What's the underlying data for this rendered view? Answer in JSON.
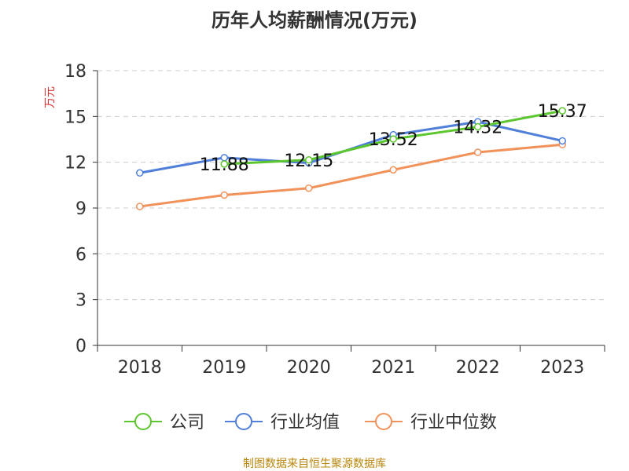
{
  "title": "历年人均薪酬情况(万元)",
  "footer": "制图数据来自恒生聚源数据库",
  "colors": {
    "company": "#5bc62d",
    "industry_avg": "#4f7fd8",
    "industry_median": "#f0925a",
    "unit_label": "#e03030",
    "axis": "#333333",
    "grid": "#cccccc"
  },
  "chart_data": {
    "type": "line",
    "title": "历年人均薪酬情况(万元)",
    "ylabel": "万元",
    "xlabel": "",
    "ylim": [
      0,
      18
    ],
    "yticks": [
      0,
      3,
      6,
      9,
      12,
      15,
      18
    ],
    "grid": true,
    "legend_position": "bottom",
    "categories": [
      "2018",
      "2019",
      "2020",
      "2021",
      "2022",
      "2023"
    ],
    "series": [
      {
        "name": "公司",
        "color": "#5bc62d",
        "values": [
          null,
          11.88,
          12.15,
          13.52,
          14.32,
          15.37
        ],
        "labels": [
          null,
          "11.88",
          "12.15",
          "13.52",
          "14.32",
          "15.37"
        ]
      },
      {
        "name": "行业均值",
        "color": "#4f7fd8",
        "values": [
          11.3,
          12.3,
          11.95,
          13.8,
          14.65,
          13.4
        ]
      },
      {
        "name": "行业中位数",
        "color": "#f0925a",
        "values": [
          9.1,
          9.85,
          10.3,
          11.5,
          12.65,
          13.15
        ]
      }
    ]
  }
}
